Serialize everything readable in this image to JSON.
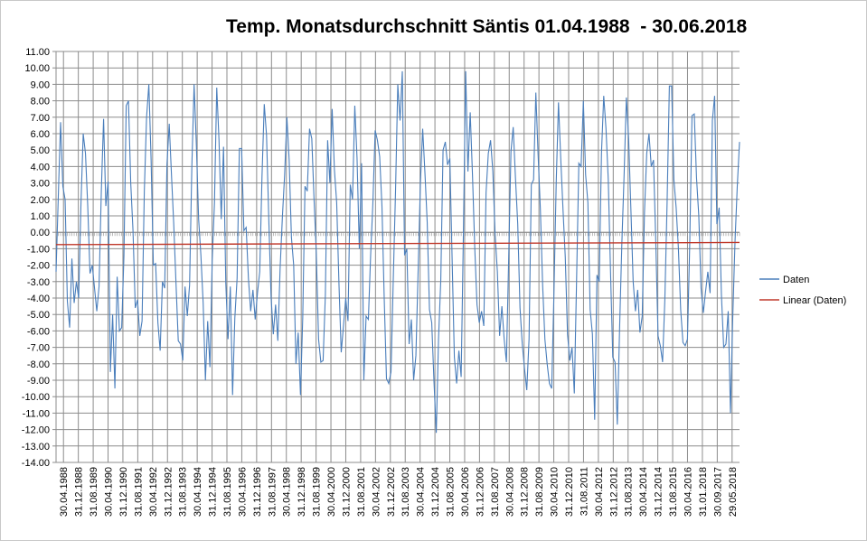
{
  "chart_data": {
    "type": "line",
    "title": "Temp. Monatsdurchschnitt Säntis 01.04.1988  - 30.06.2018",
    "xlabel": "",
    "ylabel": "",
    "ylim": [
      -14,
      11
    ],
    "ytick_step": 1,
    "ytick_labels": [
      "11.00",
      "10.00",
      "9.00",
      "8.00",
      "7.00",
      "6.00",
      "5.00",
      "4.00",
      "3.00",
      "2.00",
      "1.00",
      "0.00",
      "-1.00",
      "-2.00",
      "-3.00",
      "-4.00",
      "-5.00",
      "-6.00",
      "-7.00",
      "-8.00",
      "-9.00",
      "-10.00",
      "-11.00",
      "-12.00",
      "-13.00",
      "-14.00"
    ],
    "x_tick_labels": [
      "30.04.1988",
      "31.12.1988",
      "31.08.1989",
      "30.04.1990",
      "31.12.1990",
      "31.08.1991",
      "30.04.1992",
      "31.12.1992",
      "31.08.1993",
      "30.04.1994",
      "31.12.1994",
      "31.08.1995",
      "30.04.1996",
      "31.12.1996",
      "31.08.1997",
      "30.04.1998",
      "31.12.1998",
      "31.08.1999",
      "30.04.2000",
      "31.12.2000",
      "31.08.2001",
      "30.04.2002",
      "31.12.2002",
      "31.08.2003",
      "30.04.2004",
      "31.12.2004",
      "31.08.2005",
      "30.04.2006",
      "31.12.2006",
      "31.08.2007",
      "30.04.2008",
      "31.12.2008",
      "31.08.2009",
      "30.04.2010",
      "31.12.2010",
      "31.08.2011",
      "30.04.2012",
      "31.12.2012",
      "31.08.2013",
      "30.04.2014",
      "31.12.2014",
      "31.08.2015",
      "30.04.2016",
      "31.01.2018",
      "30.09.2017",
      "29.05.2018"
    ],
    "grid": true,
    "legend_position": "right",
    "series": [
      {
        "name": "Daten",
        "color": "#4a7ebb",
        "values": [
          -2.4,
          2.2,
          6.7,
          2.8,
          2.0,
          -4.2,
          -5.8,
          -1.6,
          -4.3,
          -3.0,
          -4.0,
          1.7,
          6.0,
          4.8,
          1.6,
          -2.5,
          -2.0,
          -3.4,
          -4.8,
          -3.3,
          2.5,
          6.9,
          1.6,
          3.1,
          -8.5,
          -5.0,
          -9.5,
          -2.7,
          -6.0,
          -5.8,
          -1.4,
          7.7,
          8.0,
          3.0,
          0.1,
          -4.6,
          -4.1,
          -6.3,
          -5.4,
          2.5,
          7.0,
          9.0,
          4.4,
          -2.0,
          -1.9,
          -5.5,
          -7.2,
          -3.0,
          -3.4,
          4.1,
          6.6,
          3.5,
          0.5,
          -3.1,
          -6.6,
          -6.8,
          -7.8,
          -3.3,
          -5.1,
          -3.2,
          4.0,
          9.0,
          5.3,
          0.8,
          -1.4,
          -4.3,
          -9.0,
          -5.4,
          -8.2,
          -1.7,
          1.8,
          8.8,
          5.6,
          0.8,
          5.2,
          -3.1,
          -6.5,
          -3.3,
          -9.9,
          -5.2,
          -2.8,
          5.1,
          5.1,
          0.1,
          0.3,
          -2.8,
          -4.8,
          -3.5,
          -5.3,
          -3.7,
          -2.4,
          3.4,
          7.8,
          5.9,
          0.8,
          -3.9,
          -6.2,
          -4.4,
          -6.6,
          -2.2,
          0.9,
          3.5,
          7.0,
          4.4,
          -0.3,
          -2.0,
          -8.0,
          -6.1,
          -9.9,
          -5.2,
          2.8,
          2.5,
          6.3,
          5.7,
          2.0,
          -1.3,
          -6.5,
          -7.9,
          -7.8,
          -3.8,
          5.6,
          3.0,
          7.5,
          3.8,
          1.8,
          -3.1,
          -7.3,
          -5.7,
          -4.0,
          -5.4,
          2.9,
          2.0,
          7.7,
          4.5,
          -1.0,
          4.2,
          -9.0,
          -5.1,
          -5.3,
          -1.4,
          1.8,
          6.2,
          5.6,
          4.6,
          1.6,
          -4.0,
          -8.9,
          -9.2,
          -8.5,
          -2.9,
          2.5,
          9.0,
          6.8,
          9.8,
          -1.4,
          -1.0,
          -6.8,
          -5.3,
          -9.0,
          -7.5,
          -2.3,
          3.0,
          6.3,
          3.6,
          0.6,
          -4.7,
          -5.5,
          -9.1,
          -12.2,
          -6.5,
          -2.9,
          5.0,
          5.5,
          4.1,
          4.5,
          -1.6,
          -7.6,
          -9.2,
          -7.2,
          -8.8,
          0.0,
          9.8,
          3.7,
          7.3,
          3.5,
          -0.9,
          -4.4,
          -5.5,
          -4.8,
          -5.7,
          2.4,
          4.8,
          5.6,
          3.7,
          -0.1,
          -2.4,
          -6.3,
          -4.5,
          -6.5,
          -7.9,
          -1.6,
          4.9,
          6.4,
          3.3,
          0.5,
          -4.6,
          -6.8,
          -8.3,
          -9.6,
          -6.5,
          2.9,
          3.2,
          8.5,
          4.7,
          1.4,
          -3.2,
          -6.5,
          -8.0,
          -9.2,
          -9.5,
          -3.7,
          3.0,
          7.9,
          4.5,
          1.4,
          -1.5,
          -6.2,
          -7.8,
          -7.0,
          -9.8,
          -2.9,
          4.2,
          4.0,
          8.0,
          3.5,
          1.8,
          -4.7,
          -6.2,
          -11.4,
          -2.6,
          -3.0,
          4.8,
          8.3,
          6.3,
          3.2,
          -2.4,
          -7.6,
          -7.9,
          -11.7,
          -5.9,
          -0.7,
          3.5,
          8.2,
          5.7,
          1.4,
          -3.0,
          -4.8,
          -3.5,
          -6.1,
          -5.1,
          1.2,
          4.8,
          6.0,
          4.0,
          4.4,
          -0.6,
          -6.3,
          -6.9,
          -7.9,
          -4.1,
          1.8,
          8.9,
          8.9,
          3.2,
          1.5,
          -1.0,
          -4.7,
          -6.7,
          -6.9,
          -6.5,
          -0.7,
          7.1,
          7.2,
          3.3,
          1.0,
          -3.4,
          -4.9,
          -3.6,
          -2.4,
          -3.7,
          6.8,
          8.3,
          0.5,
          1.5,
          -3.8,
          -7.0,
          -6.8,
          -4.8,
          -11.0,
          -5.2,
          -0.6,
          2.8,
          5.5
        ]
      },
      {
        "name": "Linear (Daten)",
        "color": "#c0392b",
        "values": [
          -0.75,
          -0.62
        ]
      }
    ]
  }
}
